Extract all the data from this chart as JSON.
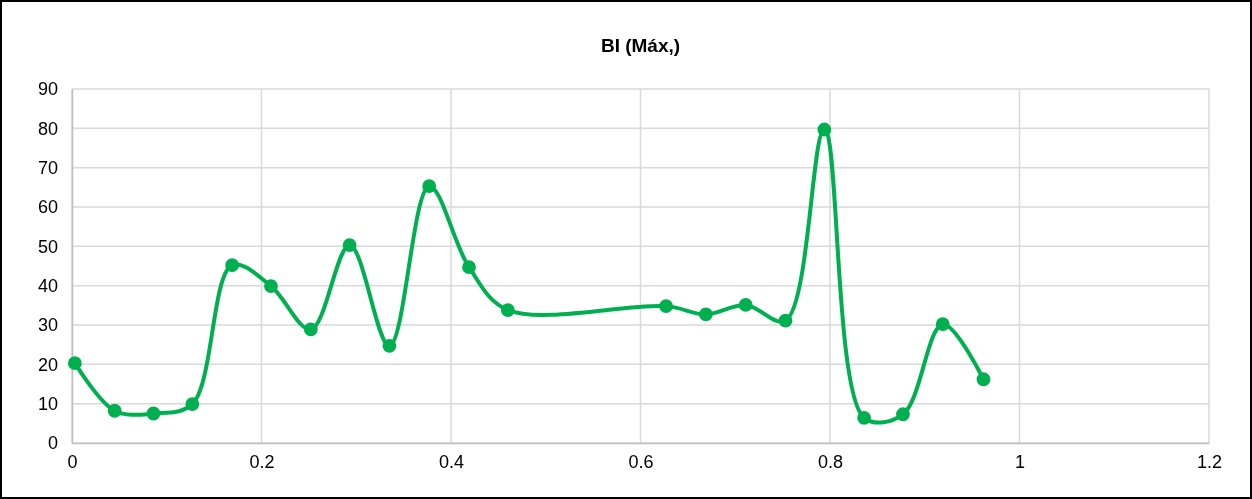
{
  "chart_data": {
    "type": "line",
    "title": "BI (Máx,)",
    "x": [
      0.003,
      0.045,
      0.086,
      0.127,
      0.169,
      0.21,
      0.252,
      0.293,
      0.335,
      0.377,
      0.419,
      0.46,
      0.627,
      0.669,
      0.711,
      0.753,
      0.794,
      0.836,
      0.877,
      0.919,
      0.962
    ],
    "series": [
      {
        "color": "#00b050",
        "values": [
          20.3,
          8.2,
          7.5,
          9.9,
          45.2,
          39.9,
          28.9,
          50.3,
          24.7,
          65.3,
          44.7,
          33.8,
          34.8,
          32.7,
          35.1,
          31.1,
          79.7,
          6.4,
          7.3,
          30.2,
          16.2
        ]
      }
    ],
    "xlim": [
      0,
      1.2
    ],
    "xticks": [
      0,
      0.2,
      0.4,
      0.6,
      0.8,
      1,
      1.2
    ],
    "ylim": [
      0,
      90
    ],
    "yticks": [
      0,
      10,
      20,
      30,
      40,
      50,
      60,
      70,
      80,
      90
    ],
    "grid": true,
    "marker": "circle",
    "line_style": "solid"
  }
}
